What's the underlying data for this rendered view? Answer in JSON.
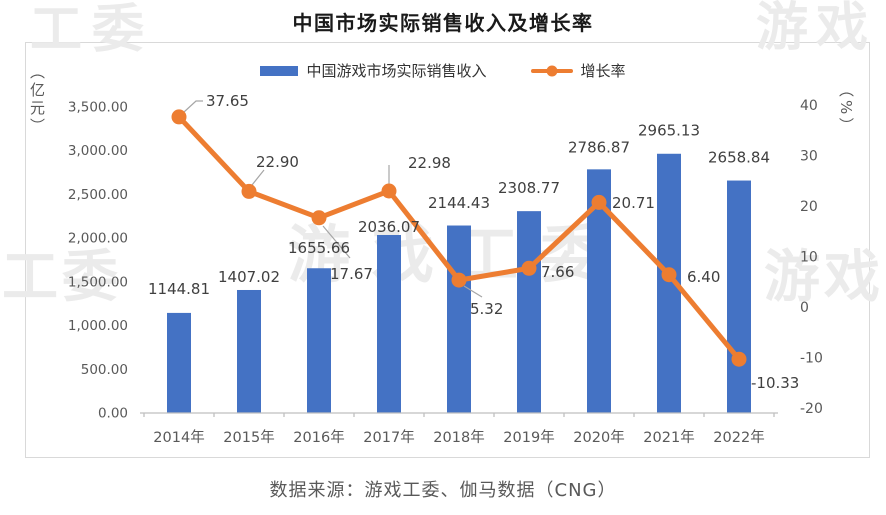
{
  "title": "中国市场实际销售收入及增长率",
  "source_note": "数据来源：游戏工委、伽马数据（CNG）",
  "watermarks": {
    "top_left": "工委",
    "top_right": "游戏",
    "mid_left": "工委",
    "center": "游戏工委",
    "mid_right": "游戏"
  },
  "colors": {
    "bar": "#4472C4",
    "line": "#ED7D31",
    "axis_text": "#595959",
    "label_text": "#404040",
    "leader_line": "#A6A6A6",
    "axis_line": "#BFBFBF",
    "panel_border": "#D9D9D9",
    "watermark": "#EBEBEB",
    "title_text": "#1A1A1A",
    "source_text": "#595959"
  },
  "chart_data": {
    "type": "bar",
    "title": "中国市场实际销售收入及增长率",
    "categories": [
      "2014年",
      "2015年",
      "2016年",
      "2017年",
      "2018年",
      "2019年",
      "2020年",
      "2021年",
      "2022年"
    ],
    "series": [
      {
        "name": "中国游戏市场实际销售收入",
        "chart_type": "bar",
        "axis": "left",
        "color": "#4472C4",
        "values": [
          1144.81,
          1407.02,
          1655.66,
          2036.07,
          2144.43,
          2308.77,
          2786.87,
          2965.13,
          2658.84
        ]
      },
      {
        "name": "增长率",
        "chart_type": "line",
        "axis": "right",
        "color": "#ED7D31",
        "values": [
          37.65,
          22.9,
          17.67,
          22.98,
          5.32,
          7.66,
          20.71,
          6.4,
          -10.33
        ]
      }
    ],
    "xlabel": "",
    "left_ylabel": "（亿元）",
    "right_ylabel": "（%）",
    "left_ylim": [
      0,
      3500
    ],
    "right_ylim": [
      -21,
      40
    ],
    "left_ticks": [
      "3,500.00",
      "3,000.00",
      "2,500.00",
      "2,000.00",
      "1,500.00",
      "1,000.00",
      "500.00",
      "0.00"
    ],
    "right_ticks": [
      "40",
      "30",
      "20",
      "10",
      "0",
      "-10",
      "-20"
    ],
    "grid": false,
    "legend_position": "top",
    "data_labels": true
  }
}
